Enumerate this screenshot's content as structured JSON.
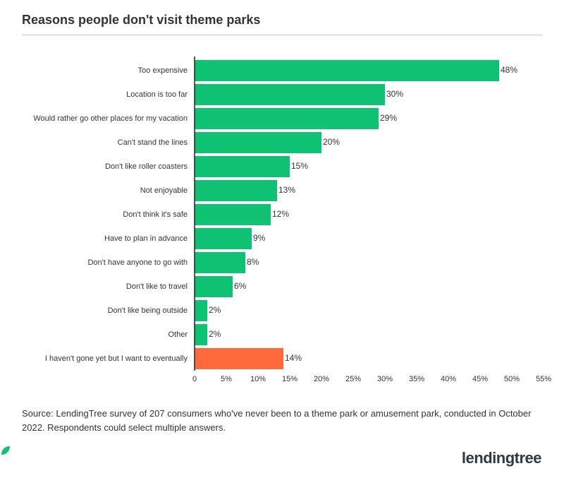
{
  "chart_data": {
    "type": "bar",
    "orientation": "horizontal",
    "title": "Reasons people don't visit theme parks",
    "categories": [
      "Too expensive",
      "Location is too far",
      "Would rather go other places for my vacation",
      "Can't stand the lines",
      "Don't like roller coasters",
      "Not enjoyable",
      "Don't think it's safe",
      "Have to plan in advance",
      "Don't have anyone to go with",
      "Don't like to travel",
      "Don't like being outside",
      "Other",
      "I haven't gone yet but I want to eventually"
    ],
    "values": [
      48,
      30,
      29,
      20,
      15,
      13,
      12,
      9,
      8,
      6,
      2,
      2,
      14
    ],
    "value_labels": [
      "48%",
      "30%",
      "29%",
      "20%",
      "15%",
      "13%",
      "12%",
      "9%",
      "8%",
      "6%",
      "2%",
      "2%",
      "14%"
    ],
    "colors": [
      "#0fc172",
      "#0fc172",
      "#0fc172",
      "#0fc172",
      "#0fc172",
      "#0fc172",
      "#0fc172",
      "#0fc172",
      "#0fc172",
      "#0fc172",
      "#0fc172",
      "#0fc172",
      "#ff6a3d"
    ],
    "xlim": [
      0,
      55
    ],
    "xticks": [
      0,
      {
        "value": 5,
        "label": "5%"
      },
      {
        "value": 10,
        "label": "10%"
      },
      {
        "value": 15,
        "label": "15%"
      },
      {
        "value": 20,
        "label": "20%"
      },
      {
        "value": 25,
        "label": "25%"
      },
      {
        "value": 30,
        "label": "30%"
      },
      {
        "value": 35,
        "label": "35%"
      },
      {
        "value": 40,
        "label": "40%"
      },
      {
        "value": 45,
        "label": "45%"
      },
      {
        "value": 50,
        "label": "50%"
      },
      {
        "value": 55,
        "label": "55%"
      }
    ],
    "grid": false,
    "source": "Source: LendingTree survey of 207 consumers who've never been to a theme park or amusement park, conducted in October 2022. Respondents could select multiple answers.",
    "logo": "lendingtree"
  }
}
